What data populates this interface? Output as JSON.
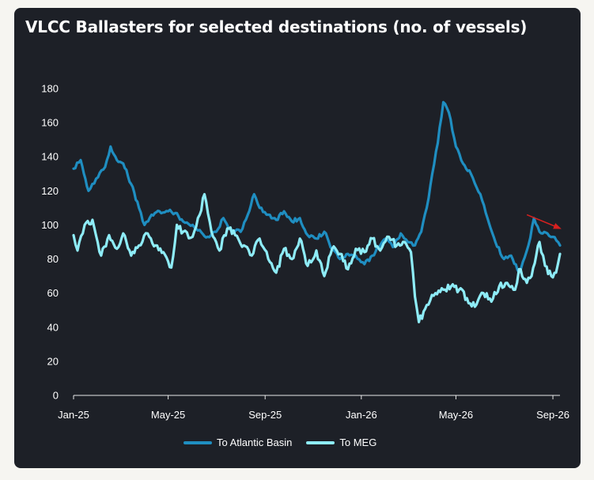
{
  "chart_data": {
    "type": "line",
    "title": "VLCC Ballasters for selected destinations (no. of vessels)",
    "xlabel": "",
    "ylabel": "",
    "ylim": [
      0,
      180
    ],
    "yticks": [
      0,
      20,
      40,
      60,
      80,
      100,
      120,
      140,
      160,
      180
    ],
    "xticks": [
      "Jan-25",
      "May-25",
      "Sep-25",
      "Jan-26",
      "May-26",
      "Sep-26"
    ],
    "xlim": [
      "2025-01-01",
      "2026-09-10"
    ],
    "grid": false,
    "legend": "bottom",
    "series": [
      {
        "name": "To Atlantic Basin",
        "color": "#1f8ec1",
        "points": [
          [
            "2025-01-01",
            133
          ],
          [
            "2025-01-10",
            138
          ],
          [
            "2025-01-20",
            120
          ],
          [
            "2025-02-01",
            128
          ],
          [
            "2025-02-10",
            134
          ],
          [
            "2025-02-17",
            146
          ],
          [
            "2025-02-25",
            138
          ],
          [
            "2025-03-05",
            136
          ],
          [
            "2025-03-15",
            124
          ],
          [
            "2025-03-25",
            110
          ],
          [
            "2025-04-01",
            100
          ],
          [
            "2025-04-10",
            106
          ],
          [
            "2025-04-20",
            108
          ],
          [
            "2025-05-01",
            108
          ],
          [
            "2025-05-10",
            107
          ],
          [
            "2025-05-20",
            102
          ],
          [
            "2025-06-01",
            100
          ],
          [
            "2025-06-10",
            97
          ],
          [
            "2025-06-20",
            93
          ],
          [
            "2025-07-01",
            96
          ],
          [
            "2025-07-10",
            104
          ],
          [
            "2025-07-20",
            97
          ],
          [
            "2025-08-01",
            96
          ],
          [
            "2025-08-10",
            106
          ],
          [
            "2025-08-18",
            118
          ],
          [
            "2025-08-25",
            110
          ],
          [
            "2025-09-05",
            106
          ],
          [
            "2025-09-15",
            103
          ],
          [
            "2025-09-25",
            108
          ],
          [
            "2025-10-05",
            102
          ],
          [
            "2025-10-15",
            104
          ],
          [
            "2025-10-25",
            94
          ],
          [
            "2025-11-05",
            92
          ],
          [
            "2025-11-15",
            96
          ],
          [
            "2025-11-25",
            86
          ],
          [
            "2025-12-05",
            80
          ],
          [
            "2025-12-15",
            83
          ],
          [
            "2025-12-25",
            82
          ],
          [
            "2026-01-05",
            77
          ],
          [
            "2026-01-15",
            82
          ],
          [
            "2026-01-25",
            88
          ],
          [
            "2026-02-01",
            92
          ],
          [
            "2026-02-10",
            87
          ],
          [
            "2026-02-20",
            95
          ],
          [
            "2026-03-01",
            90
          ],
          [
            "2026-03-10",
            88
          ],
          [
            "2026-03-18",
            96
          ],
          [
            "2026-03-25",
            110
          ],
          [
            "2026-04-01",
            130
          ],
          [
            "2026-04-08",
            148
          ],
          [
            "2026-04-15",
            172
          ],
          [
            "2026-04-22",
            166
          ],
          [
            "2026-05-01",
            146
          ],
          [
            "2026-05-10",
            136
          ],
          [
            "2026-05-20",
            130
          ],
          [
            "2026-06-01",
            118
          ],
          [
            "2026-06-10",
            104
          ],
          [
            "2026-06-20",
            90
          ],
          [
            "2026-07-01",
            80
          ],
          [
            "2026-07-10",
            82
          ],
          [
            "2026-07-20",
            72
          ],
          [
            "2026-08-01",
            88
          ],
          [
            "2026-08-08",
            104
          ],
          [
            "2026-08-15",
            96
          ],
          [
            "2026-08-25",
            95
          ],
          [
            "2026-09-01",
            93
          ],
          [
            "2026-09-10",
            88
          ]
        ]
      },
      {
        "name": "To MEG",
        "color": "#8eecf7",
        "points": [
          [
            "2025-01-01",
            94
          ],
          [
            "2025-01-06",
            85
          ],
          [
            "2025-01-15",
            100
          ],
          [
            "2025-01-25",
            103
          ],
          [
            "2025-02-05",
            82
          ],
          [
            "2025-02-15",
            94
          ],
          [
            "2025-02-25",
            86
          ],
          [
            "2025-03-05",
            95
          ],
          [
            "2025-03-15",
            82
          ],
          [
            "2025-03-25",
            88
          ],
          [
            "2025-04-05",
            95
          ],
          [
            "2025-04-15",
            88
          ],
          [
            "2025-04-25",
            84
          ],
          [
            "2025-05-05",
            75
          ],
          [
            "2025-05-12",
            100
          ],
          [
            "2025-05-20",
            96
          ],
          [
            "2025-06-01",
            93
          ],
          [
            "2025-06-10",
            106
          ],
          [
            "2025-06-16",
            118
          ],
          [
            "2025-06-25",
            96
          ],
          [
            "2025-07-05",
            85
          ],
          [
            "2025-07-15",
            98
          ],
          [
            "2025-07-25",
            94
          ],
          [
            "2025-08-05",
            88
          ],
          [
            "2025-08-15",
            82
          ],
          [
            "2025-08-25",
            92
          ],
          [
            "2025-09-05",
            80
          ],
          [
            "2025-09-15",
            72
          ],
          [
            "2025-09-25",
            86
          ],
          [
            "2025-10-05",
            80
          ],
          [
            "2025-10-15",
            92
          ],
          [
            "2025-10-25",
            76
          ],
          [
            "2025-11-05",
            85
          ],
          [
            "2025-11-15",
            70
          ],
          [
            "2025-11-25",
            86
          ],
          [
            "2025-12-05",
            83
          ],
          [
            "2025-12-15",
            74
          ],
          [
            "2025-12-25",
            86
          ],
          [
            "2026-01-05",
            84
          ],
          [
            "2026-01-15",
            92
          ],
          [
            "2026-01-25",
            85
          ],
          [
            "2026-02-05",
            93
          ],
          [
            "2026-02-15",
            88
          ],
          [
            "2026-02-25",
            90
          ],
          [
            "2026-03-05",
            84
          ],
          [
            "2026-03-10",
            58
          ],
          [
            "2026-03-15",
            43
          ],
          [
            "2026-03-25",
            53
          ],
          [
            "2026-04-05",
            60
          ],
          [
            "2026-04-15",
            62
          ],
          [
            "2026-04-25",
            64
          ],
          [
            "2026-05-05",
            62
          ],
          [
            "2026-05-15",
            57
          ],
          [
            "2026-05-25",
            52
          ],
          [
            "2026-06-05",
            60
          ],
          [
            "2026-06-15",
            55
          ],
          [
            "2026-06-25",
            64
          ],
          [
            "2026-07-05",
            66
          ],
          [
            "2026-07-15",
            62
          ],
          [
            "2026-07-20",
            74
          ],
          [
            "2026-07-30",
            66
          ],
          [
            "2026-08-05",
            70
          ],
          [
            "2026-08-15",
            90
          ],
          [
            "2026-08-22",
            76
          ],
          [
            "2026-08-30",
            70
          ],
          [
            "2026-09-05",
            72
          ],
          [
            "2026-09-10",
            83
          ]
        ]
      }
    ],
    "annotations": [
      {
        "type": "arrow",
        "color": "#d7201f",
        "from": [
          "2026-07-30",
          106
        ],
        "to": [
          "2026-09-10",
          98
        ]
      }
    ]
  }
}
